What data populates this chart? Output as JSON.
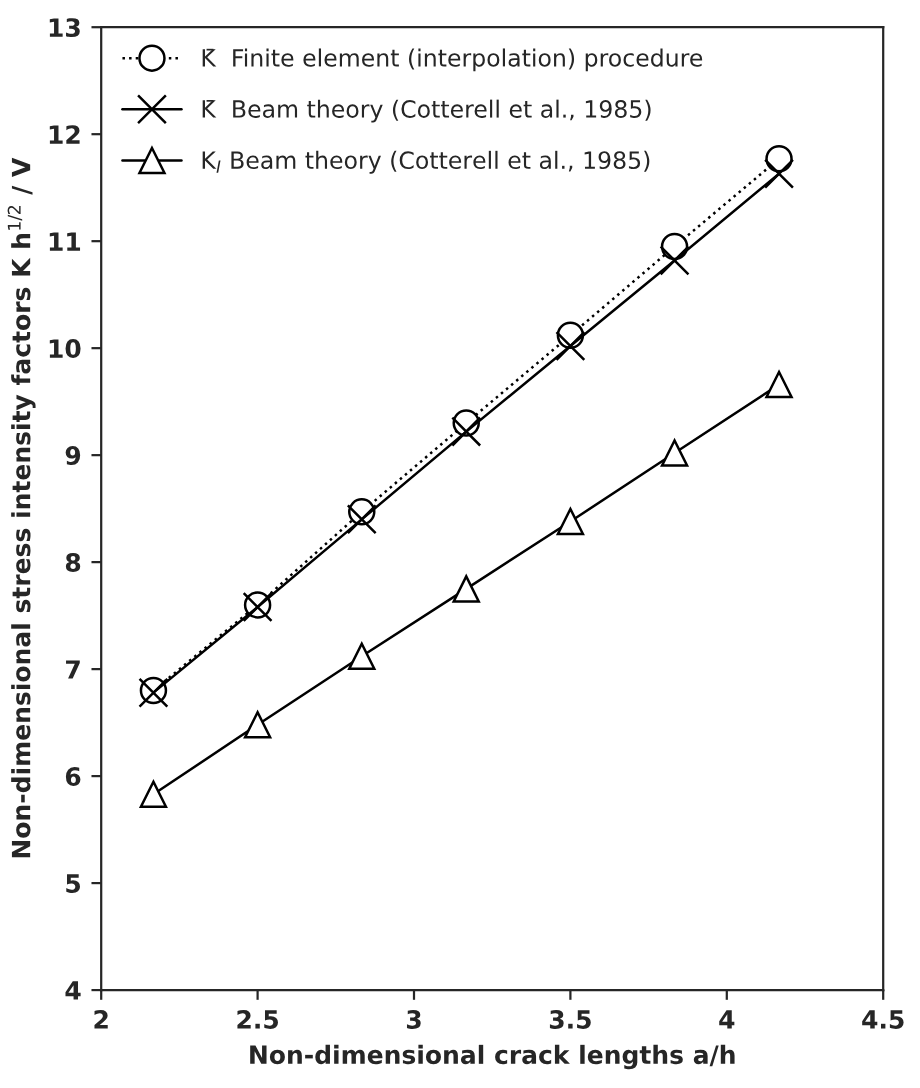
{
  "chart_data": {
    "type": "line",
    "xlabel": "Non-dimensional crack lengths a/h",
    "ylabel": "Non-dimensional stress intensity factors K h$^{1/2}$ / V",
    "xlim": [
      2,
      4.5
    ],
    "xticks": [
      2,
      2.5,
      3,
      3.5,
      4,
      4.5
    ],
    "ylim": [
      4,
      13
    ],
    "yticks": [
      4,
      5,
      6,
      7,
      8,
      9,
      10,
      11,
      12,
      13
    ],
    "grid": false,
    "legend": "top left",
    "series": [
      {
        "name": "K̄  Finite element (interpolation) procedure",
        "color": "#000000",
        "marker": "circle",
        "line_style": "dotted",
        "x": [
          2.167,
          2.5,
          2.833,
          3.167,
          3.5,
          3.833,
          4.167
        ],
        "values": [
          6.8,
          7.6,
          8.47,
          9.3,
          10.12,
          10.95,
          11.77
        ]
      },
      {
        "name": "K̄  Beam theory (Cotterell et al., 1985)",
        "color": "#000000",
        "marker": "cross",
        "line_style": "solid",
        "x": [
          2.167,
          2.5,
          2.833,
          3.167,
          3.5,
          3.833,
          4.167
        ],
        "values": [
          6.78,
          7.58,
          8.4,
          9.22,
          10.02,
          10.82,
          11.63
        ]
      },
      {
        "name": "K$_{I}$ Beam theory (Cotterell et al., 1985)",
        "color": "#000000",
        "marker": "triangle",
        "line_style": "solid",
        "x": [
          2.167,
          2.5,
          2.833,
          3.167,
          3.5,
          3.833,
          4.167
        ],
        "values": [
          5.83,
          6.48,
          7.12,
          7.75,
          8.38,
          9.02,
          9.66
        ]
      }
    ]
  }
}
